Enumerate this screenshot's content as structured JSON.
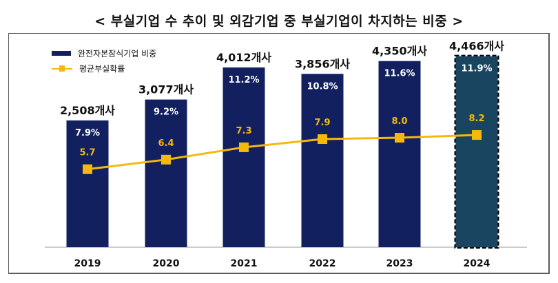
{
  "header": {
    "title": "< 부실기업 수 추이 및 외감기업 중 부실기업이 차지하는 비중 >"
  },
  "colors": {
    "bar": "#13205f",
    "bar_highlight": "#1a4560",
    "line": "#f5b90b",
    "text": "#111111",
    "bar_text": "#ffffff"
  },
  "chart_data": {
    "type": "bar",
    "categories": [
      "2019",
      "2020",
      "2021",
      "2022",
      "2023",
      "2024"
    ],
    "series": [
      {
        "name": "완전자본잠식기업 비중",
        "type": "bar",
        "values": [
          7.9,
          9.2,
          11.2,
          10.8,
          11.6,
          11.9
        ],
        "labels": [
          "7.9%",
          "9.2%",
          "11.2%",
          "10.8%",
          "11.6%",
          "11.9%"
        ]
      },
      {
        "name": "평균부실확률",
        "type": "line",
        "values": [
          5.7,
          6.4,
          7.3,
          7.9,
          8.0,
          8.2
        ],
        "labels": [
          "5.7",
          "6.4",
          "7.3",
          "7.9",
          "8.0",
          "8.2"
        ]
      }
    ],
    "bar_top_labels": [
      "2,508개사",
      "3,077개사",
      "4,012개사",
      "3,856개사",
      "4,350개사",
      "4,466개사"
    ],
    "bar_axis_range": [
      0,
      13.3
    ],
    "line_axis_range": [
      0,
      15.6
    ],
    "highlight_index": 5,
    "legend": "top-left",
    "grid": false
  }
}
